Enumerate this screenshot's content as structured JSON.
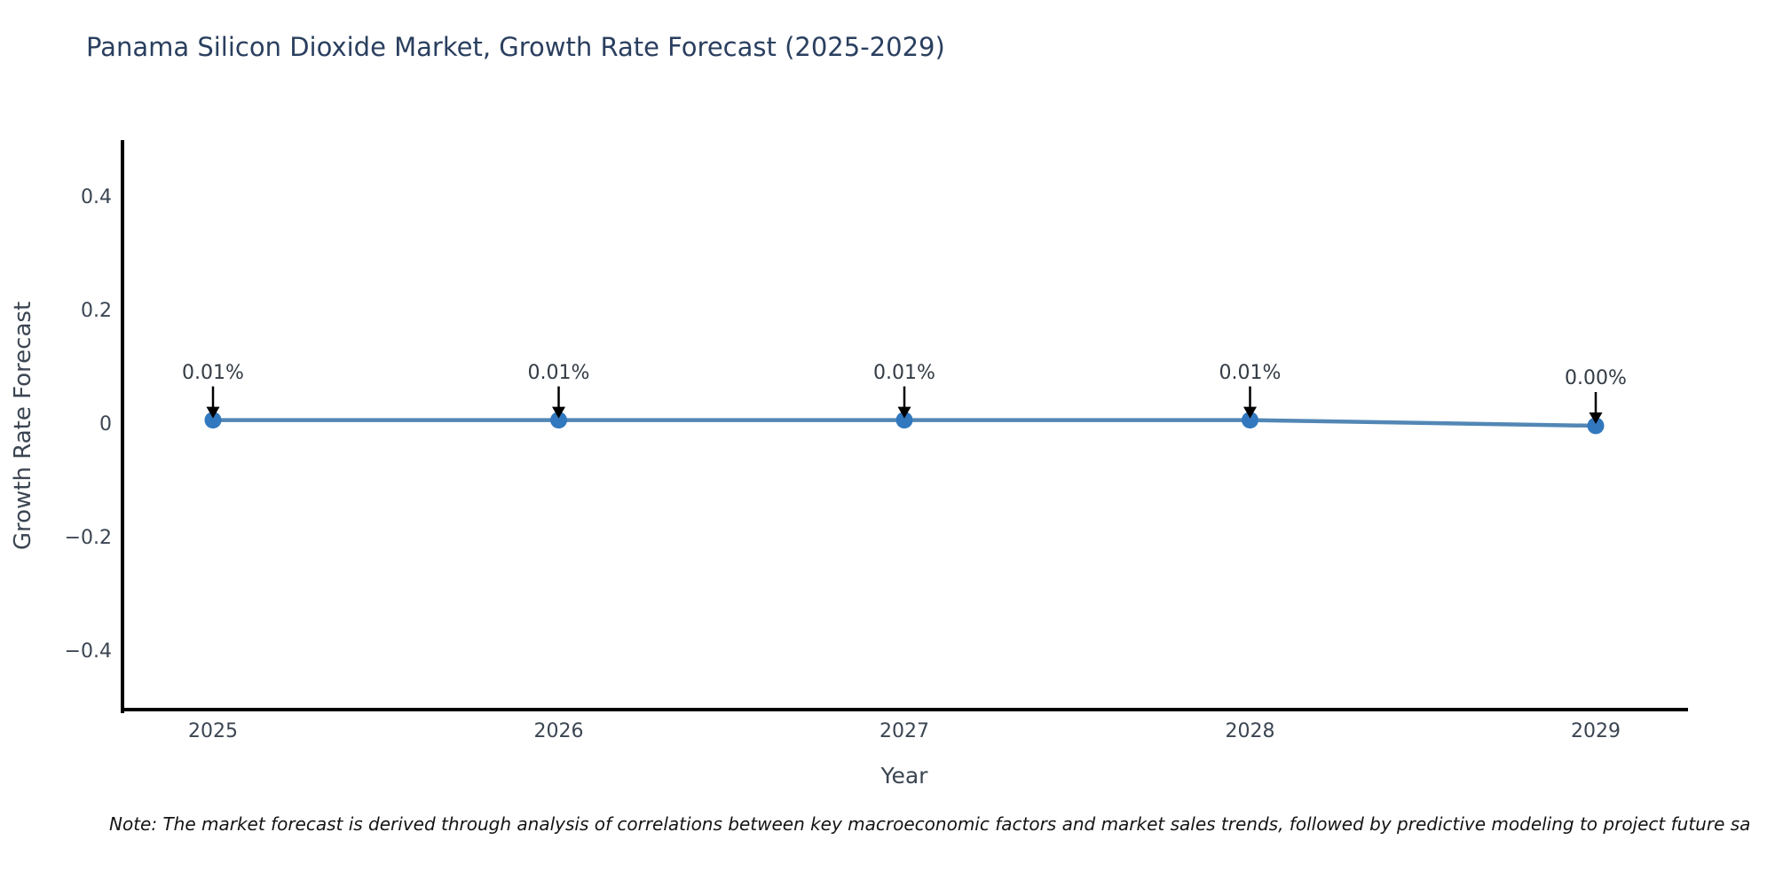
{
  "title": "Panama Silicon Dioxide Market, Growth Rate Forecast (2025-2029)",
  "note": "Note: The market forecast is derived through analysis of correlations between key macroeconomic factors and market sales trends, followed by predictive modeling to project future sa",
  "chart_data": {
    "type": "line",
    "title": "Panama Silicon Dioxide Market, Growth Rate Forecast (2025-2029)",
    "xlabel": "Year",
    "ylabel": "Growth Rate Forecast",
    "x": [
      2025,
      2026,
      2027,
      2028,
      2029
    ],
    "xtick_labels": [
      "2025",
      "2026",
      "2027",
      "2028",
      "2029"
    ],
    "values": [
      0.01,
      0.01,
      0.01,
      0.01,
      0.0
    ],
    "point_labels": [
      "0.01%",
      "0.01%",
      "0.01%",
      "0.01%",
      "0.00%"
    ],
    "ylim": [
      -0.5,
      0.5
    ],
    "yticks": [
      0.4,
      0.2,
      0,
      -0.2,
      -0.4
    ],
    "ytick_labels": [
      "0.4",
      "0.2",
      "0",
      "−0.2",
      "−0.4"
    ],
    "grid": false,
    "legend_position": "none",
    "colors": {
      "line": "#5287b5",
      "marker": "#3178be",
      "arrow": "#000000",
      "axis": "#000000",
      "title_text": "#2a3f5f",
      "tick_text": "#3b4552"
    }
  }
}
